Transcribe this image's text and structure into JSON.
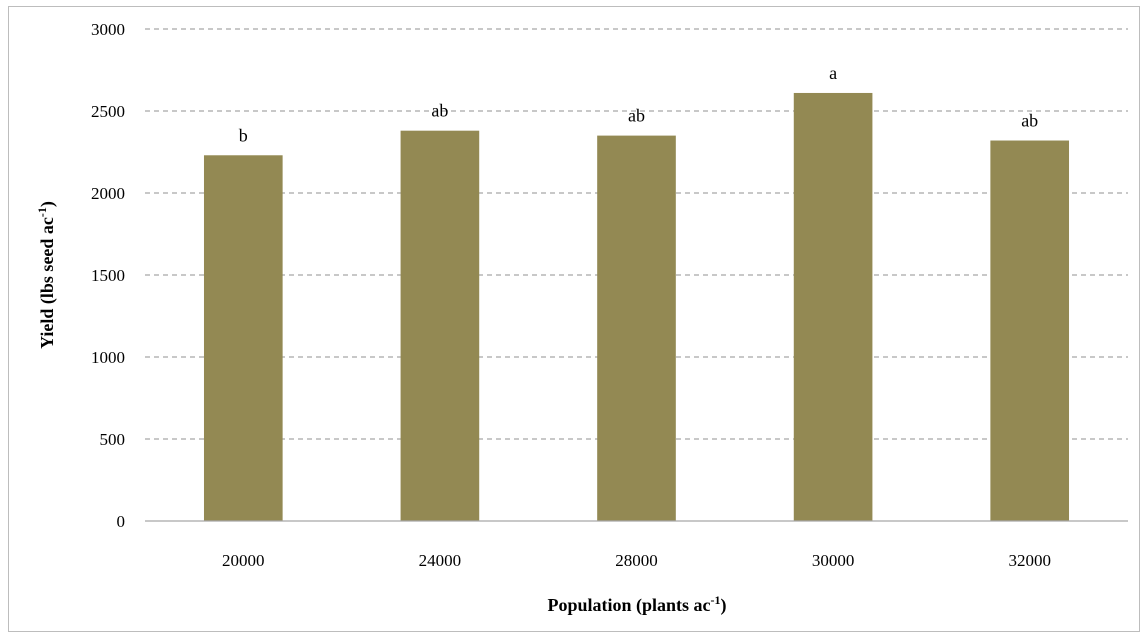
{
  "chart_data": {
    "type": "bar",
    "title": "",
    "xlabel": "Population (plants ac",
    "xlabel_sup": "-1",
    "xlabel_end": ")",
    "ylabel": "Yield (lbs seed ac",
    "ylabel_sup": "-1",
    "ylabel_end": ")",
    "categories": [
      "20000",
      "24000",
      "28000",
      "30000",
      "32000"
    ],
    "values": [
      2230,
      2380,
      2350,
      2610,
      2320
    ],
    "data_labels": [
      "b",
      "ab",
      "ab",
      "a",
      "ab"
    ],
    "ylim": [
      0,
      3000
    ],
    "yticks": [
      0,
      500,
      1000,
      1500,
      2000,
      2500,
      3000
    ],
    "grid": true,
    "legend": "none",
    "bar_color": "#938953",
    "grid_color": "#a6a6a6"
  }
}
